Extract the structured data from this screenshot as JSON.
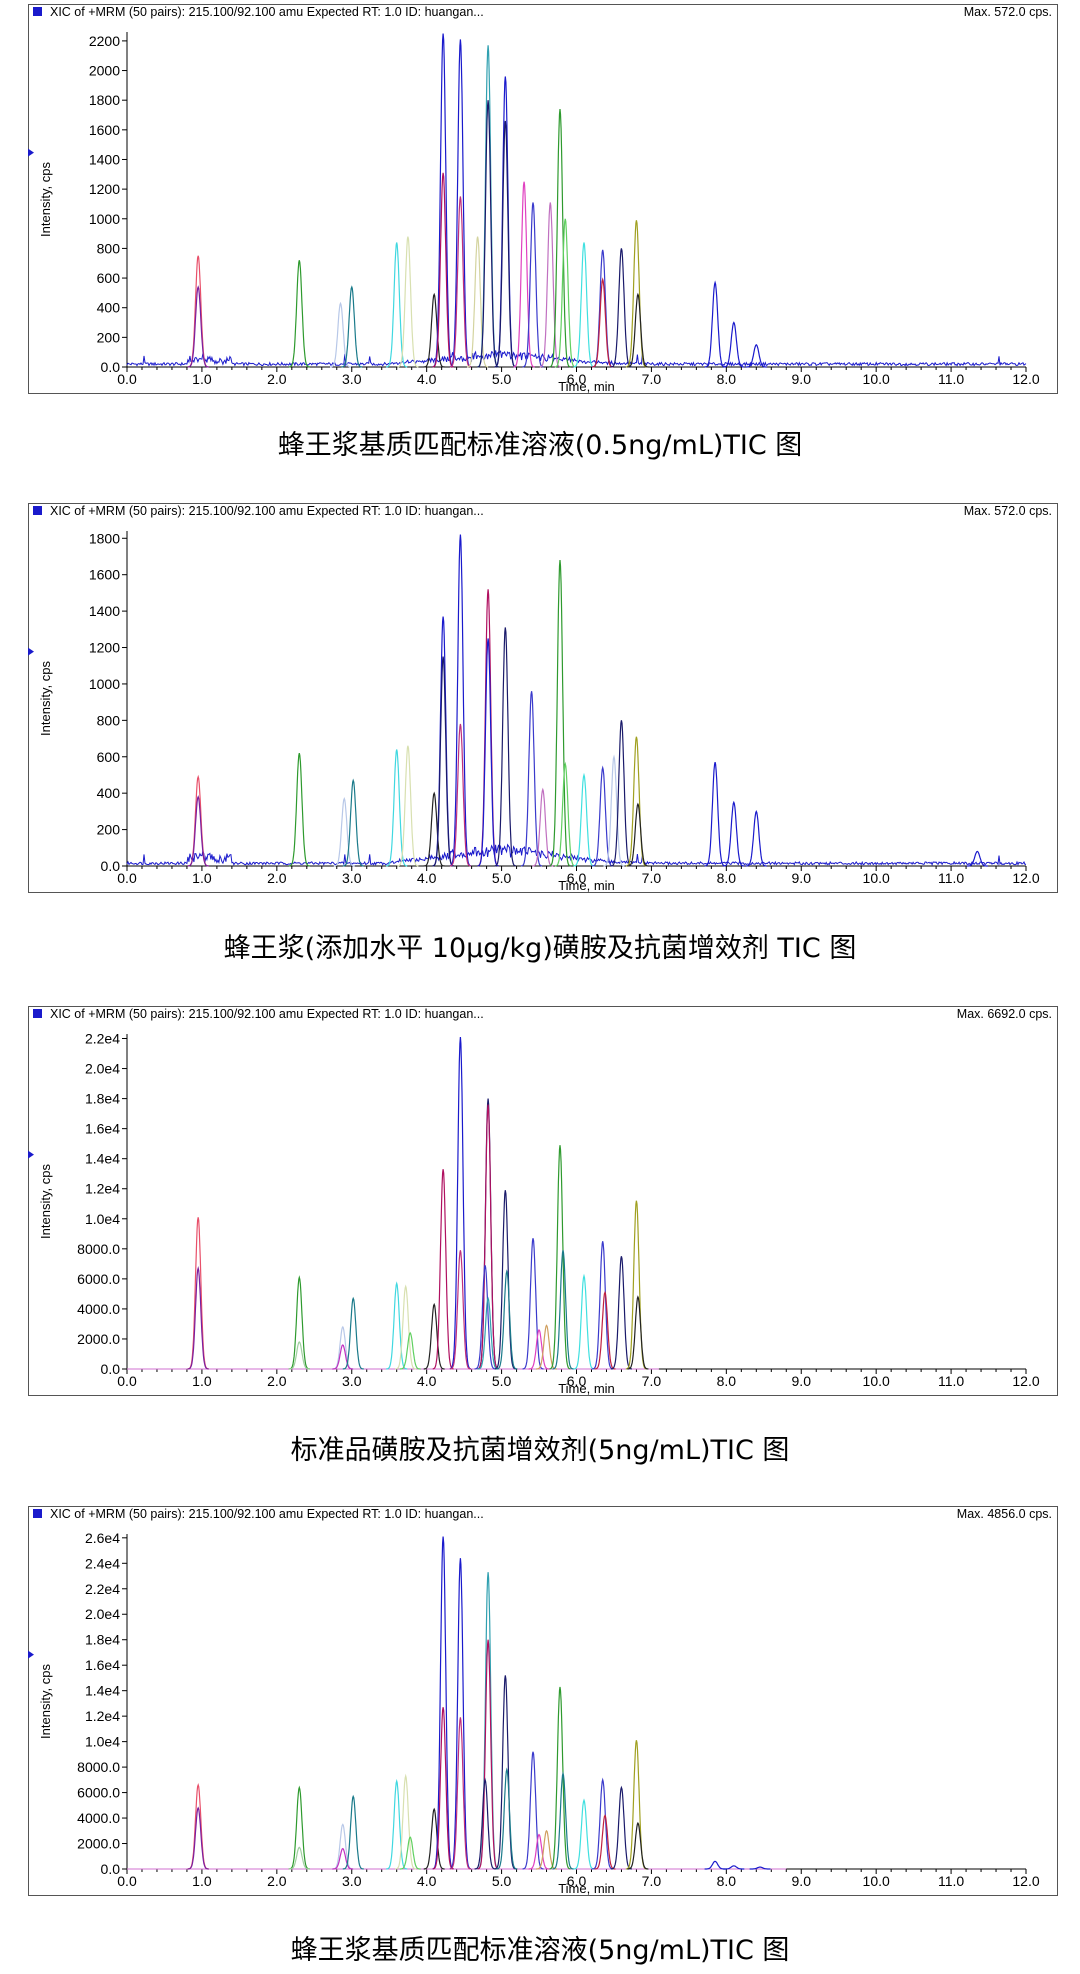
{
  "figure": {
    "captions": [
      "蜂王浆基质匹配标准溶液(0.5ng/mL)TIC 图",
      "蜂王浆(添加水平 10μg/kg)磺胺及抗菌增效剂 TIC 图",
      "标准品磺胺及抗菌增效剂(5ng/mL)TIC 图",
      "蜂王浆基质匹配标准溶液(5ng/mL)TIC 图"
    ]
  },
  "chart_data": [
    {
      "type": "line",
      "header": "XIC of +MRM (50 pairs): 215.100/92.100 amu Expected RT: 1.0 ID: huangan...",
      "max_label": "Max. 572.0 cps.",
      "title": "",
      "xlabel": "Time, min",
      "ylabel": "Intensity, cps",
      "xlim": [
        0,
        12
      ],
      "ylim": [
        0,
        2260
      ],
      "x_ticks": [
        "0.0",
        "1.0",
        "2.0",
        "3.0",
        "4.0",
        "5.0",
        "6.0",
        "7.0",
        "8.0",
        "9.0",
        "10.0",
        "11.0",
        "12.0"
      ],
      "y_ticks": [
        0,
        200,
        400,
        600,
        800,
        1000,
        1200,
        1400,
        1600,
        1800,
        2000,
        2200
      ],
      "y_tick_labels": [
        "0.0",
        "200",
        "400",
        "600",
        "800",
        "1000",
        "1200",
        "1400",
        "1600",
        "1800",
        "2000",
        "2200"
      ],
      "baseline": 20,
      "baseline_color": "#1a1acc",
      "background_end": 12,
      "hump": 60,
      "peaks": [
        {
          "rt": 0.95,
          "h": 750,
          "color": "#e8506a"
        },
        {
          "rt": 0.95,
          "h": 540,
          "color": "#7a1fa0"
        },
        {
          "rt": 2.3,
          "h": 720,
          "color": "#2e9a2e"
        },
        {
          "rt": 2.85,
          "h": 430,
          "color": "#b8c8e8"
        },
        {
          "rt": 3.0,
          "h": 540,
          "color": "#1a7a8a"
        },
        {
          "rt": 3.6,
          "h": 840,
          "color": "#40d8e0"
        },
        {
          "rt": 3.75,
          "h": 880,
          "color": "#d8e0b0"
        },
        {
          "rt": 4.1,
          "h": 490,
          "color": "#222222"
        },
        {
          "rt": 4.22,
          "h": 2250,
          "color": "#1a1acc"
        },
        {
          "rt": 4.22,
          "h": 1310,
          "color": "#b01060"
        },
        {
          "rt": 4.45,
          "h": 2210,
          "color": "#1a1acc"
        },
        {
          "rt": 4.45,
          "h": 1150,
          "color": "#c0307a"
        },
        {
          "rt": 4.68,
          "h": 880,
          "color": "#d4d4a0"
        },
        {
          "rt": 4.82,
          "h": 2170,
          "color": "#30a0b0"
        },
        {
          "rt": 4.82,
          "h": 1800,
          "color": "#1a1a6a"
        },
        {
          "rt": 5.05,
          "h": 1960,
          "color": "#1a1acc"
        },
        {
          "rt": 5.05,
          "h": 1660,
          "color": "#1a1a6a"
        },
        {
          "rt": 5.3,
          "h": 1250,
          "color": "#e040c0"
        },
        {
          "rt": 5.42,
          "h": 1110,
          "color": "#3a3acc"
        },
        {
          "rt": 5.65,
          "h": 1110,
          "color": "#c070c0"
        },
        {
          "rt": 5.78,
          "h": 1740,
          "color": "#2e9a2e"
        },
        {
          "rt": 5.85,
          "h": 1000,
          "color": "#60d060"
        },
        {
          "rt": 6.1,
          "h": 840,
          "color": "#40e0e0"
        },
        {
          "rt": 6.35,
          "h": 790,
          "color": "#3a3acc"
        },
        {
          "rt": 6.35,
          "h": 590,
          "color": "#c02040"
        },
        {
          "rt": 6.6,
          "h": 800,
          "color": "#1a1a6a"
        },
        {
          "rt": 6.8,
          "h": 990,
          "color": "#a0a020"
        },
        {
          "rt": 6.82,
          "h": 490,
          "color": "#222222"
        },
        {
          "rt": 7.85,
          "h": 570,
          "color": "#1a1acc"
        },
        {
          "rt": 8.1,
          "h": 300,
          "color": "#1a1acc"
        },
        {
          "rt": 8.4,
          "h": 150,
          "color": "#1a1acc"
        }
      ]
    },
    {
      "type": "line",
      "header": "XIC of +MRM (50 pairs): 215.100/92.100 amu Expected RT: 1.0 ID: huangan...",
      "max_label": "Max. 572.0 cps.",
      "title": "",
      "xlabel": "Time, min",
      "ylabel": "Intensity, cps",
      "xlim": [
        0,
        12
      ],
      "ylim": [
        0,
        1840
      ],
      "x_ticks": [
        "0.0",
        "1.0",
        "2.0",
        "3.0",
        "4.0",
        "5.0",
        "6.0",
        "7.0",
        "8.0",
        "9.0",
        "10.0",
        "11.0",
        "12.0"
      ],
      "y_ticks": [
        0,
        200,
        400,
        600,
        800,
        1000,
        1200,
        1400,
        1600,
        1800
      ],
      "y_tick_labels": [
        "0.0",
        "200",
        "400",
        "600",
        "800",
        "1000",
        "1200",
        "1400",
        "1600",
        "1800"
      ],
      "baseline": 15,
      "baseline_color": "#1a1acc",
      "background_end": 12,
      "hump": 70,
      "peaks": [
        {
          "rt": 0.95,
          "h": 490,
          "color": "#e8506a"
        },
        {
          "rt": 0.95,
          "h": 380,
          "color": "#7a1fa0"
        },
        {
          "rt": 2.3,
          "h": 620,
          "color": "#2e9a2e"
        },
        {
          "rt": 2.9,
          "h": 370,
          "color": "#b8c8e8"
        },
        {
          "rt": 3.02,
          "h": 470,
          "color": "#1a7a8a"
        },
        {
          "rt": 3.6,
          "h": 640,
          "color": "#40d8e0"
        },
        {
          "rt": 3.75,
          "h": 660,
          "color": "#d8e0b0"
        },
        {
          "rt": 4.1,
          "h": 400,
          "color": "#222222"
        },
        {
          "rt": 4.22,
          "h": 1370,
          "color": "#1a1acc"
        },
        {
          "rt": 4.22,
          "h": 1150,
          "color": "#1a1a6a"
        },
        {
          "rt": 4.45,
          "h": 1820,
          "color": "#1a1acc"
        },
        {
          "rt": 4.45,
          "h": 780,
          "color": "#c0307a"
        },
        {
          "rt": 4.82,
          "h": 1520,
          "color": "#b01060"
        },
        {
          "rt": 4.82,
          "h": 1250,
          "color": "#1a1acc"
        },
        {
          "rt": 5.05,
          "h": 1310,
          "color": "#1a1a6a"
        },
        {
          "rt": 5.4,
          "h": 960,
          "color": "#3a3acc"
        },
        {
          "rt": 5.55,
          "h": 420,
          "color": "#c070c0"
        },
        {
          "rt": 5.78,
          "h": 1680,
          "color": "#2e9a2e"
        },
        {
          "rt": 5.85,
          "h": 560,
          "color": "#60d060"
        },
        {
          "rt": 6.1,
          "h": 500,
          "color": "#40e0e0"
        },
        {
          "rt": 6.35,
          "h": 540,
          "color": "#3a3acc"
        },
        {
          "rt": 6.5,
          "h": 600,
          "color": "#b8c8e8"
        },
        {
          "rt": 6.6,
          "h": 800,
          "color": "#1a1a6a"
        },
        {
          "rt": 6.8,
          "h": 710,
          "color": "#a0a020"
        },
        {
          "rt": 6.82,
          "h": 340,
          "color": "#222222"
        },
        {
          "rt": 7.85,
          "h": 570,
          "color": "#1a1acc"
        },
        {
          "rt": 8.1,
          "h": 350,
          "color": "#1a1acc"
        },
        {
          "rt": 8.4,
          "h": 300,
          "color": "#1a1acc"
        },
        {
          "rt": 11.35,
          "h": 80,
          "color": "#1a1acc"
        }
      ]
    },
    {
      "type": "line",
      "header": "XIC of +MRM (50 pairs): 215.100/92.100 amu Expected RT: 1.0 ID: huangan...",
      "max_label": "Max. 6692.0 cps.",
      "title": "",
      "xlabel": "Time, min",
      "ylabel": "Intensity, cps",
      "xlim": [
        0,
        12
      ],
      "ylim": [
        0,
        22300
      ],
      "x_ticks": [
        "0.0",
        "1.0",
        "2.0",
        "3.0",
        "4.0",
        "5.0",
        "6.0",
        "7.0",
        "8.0",
        "9.0",
        "10.0",
        "11.0",
        "12.0"
      ],
      "y_ticks": [
        0,
        2000,
        4000,
        6000,
        8000,
        10000,
        12000,
        14000,
        16000,
        18000,
        20000,
        22000
      ],
      "y_tick_labels": [
        "0.0",
        "2000.0",
        "4000.0",
        "6000.0",
        "8000.0",
        "1.0e4",
        "1.2e4",
        "1.4e4",
        "1.6e4",
        "1.8e4",
        "2.0e4",
        "2.2e4"
      ],
      "baseline": 0,
      "baseline_color": "#d070d0",
      "background_end": 7.1,
      "hump": 0,
      "peaks": [
        {
          "rt": 0.95,
          "h": 10100,
          "color": "#e8506a"
        },
        {
          "rt": 0.95,
          "h": 6700,
          "color": "#7a1fa0"
        },
        {
          "rt": 2.3,
          "h": 6100,
          "color": "#2e9a2e"
        },
        {
          "rt": 2.3,
          "h": 1800,
          "color": "#a0d0a0"
        },
        {
          "rt": 2.88,
          "h": 2800,
          "color": "#b8c8e8"
        },
        {
          "rt": 2.88,
          "h": 1600,
          "color": "#c030c0"
        },
        {
          "rt": 3.02,
          "h": 4700,
          "color": "#1a7a8a"
        },
        {
          "rt": 3.6,
          "h": 5700,
          "color": "#40d8e0"
        },
        {
          "rt": 3.72,
          "h": 5500,
          "color": "#d8e0b0"
        },
        {
          "rt": 3.78,
          "h": 2400,
          "color": "#60d060"
        },
        {
          "rt": 4.1,
          "h": 4300,
          "color": "#222222"
        },
        {
          "rt": 4.22,
          "h": 13300,
          "color": "#b01060"
        },
        {
          "rt": 4.45,
          "h": 22100,
          "color": "#1a1acc"
        },
        {
          "rt": 4.45,
          "h": 7900,
          "color": "#c0307a"
        },
        {
          "rt": 4.82,
          "h": 18000,
          "color": "#1a1a6a"
        },
        {
          "rt": 4.82,
          "h": 17600,
          "color": "#b01060"
        },
        {
          "rt": 4.78,
          "h": 6900,
          "color": "#3a3acc"
        },
        {
          "rt": 4.82,
          "h": 4700,
          "color": "#30a0b0"
        },
        {
          "rt": 5.05,
          "h": 11900,
          "color": "#1a1a6a"
        },
        {
          "rt": 5.07,
          "h": 6500,
          "color": "#1a7a8a"
        },
        {
          "rt": 5.42,
          "h": 8700,
          "color": "#3a3acc"
        },
        {
          "rt": 5.5,
          "h": 2600,
          "color": "#e040c0"
        },
        {
          "rt": 5.6,
          "h": 2900,
          "color": "#d0a060"
        },
        {
          "rt": 5.78,
          "h": 14900,
          "color": "#2e9a2e"
        },
        {
          "rt": 5.82,
          "h": 7900,
          "color": "#1a7a8a"
        },
        {
          "rt": 6.1,
          "h": 6200,
          "color": "#40e0e0"
        },
        {
          "rt": 6.35,
          "h": 8500,
          "color": "#3a3acc"
        },
        {
          "rt": 6.38,
          "h": 5100,
          "color": "#c02040"
        },
        {
          "rt": 6.6,
          "h": 7500,
          "color": "#1a1a6a"
        },
        {
          "rt": 6.8,
          "h": 11200,
          "color": "#a0a020"
        },
        {
          "rt": 6.82,
          "h": 4800,
          "color": "#222222"
        }
      ]
    },
    {
      "type": "line",
      "header": "XIC of +MRM (50 pairs): 215.100/92.100 amu Expected RT: 1.0 ID: huangan...",
      "max_label": "Max. 4856.0 cps.",
      "title": "",
      "xlabel": "Time, min",
      "ylabel": "Intensity, cps",
      "xlim": [
        0,
        12
      ],
      "ylim": [
        0,
        26300
      ],
      "x_ticks": [
        "0.0",
        "1.0",
        "2.0",
        "3.0",
        "4.0",
        "5.0",
        "6.0",
        "7.0",
        "8.0",
        "9.0",
        "10.0",
        "11.0",
        "12.0"
      ],
      "y_ticks": [
        0,
        2000,
        4000,
        6000,
        8000,
        10000,
        12000,
        14000,
        16000,
        18000,
        20000,
        22000,
        24000,
        26000
      ],
      "y_tick_labels": [
        "0.0",
        "2000.0",
        "4000.0",
        "6000.0",
        "8000.0",
        "1.0e4",
        "1.2e4",
        "1.4e4",
        "1.6e4",
        "1.8e4",
        "2.0e4",
        "2.2e4",
        "2.4e4",
        "2.6e4"
      ],
      "baseline": 0,
      "baseline_color": "#d070d0",
      "background_end": 8.8,
      "hump": 0,
      "peaks": [
        {
          "rt": 0.95,
          "h": 6600,
          "color": "#e8506a"
        },
        {
          "rt": 0.95,
          "h": 4800,
          "color": "#7a1fa0"
        },
        {
          "rt": 2.3,
          "h": 6400,
          "color": "#2e9a2e"
        },
        {
          "rt": 2.3,
          "h": 1700,
          "color": "#a0d0a0"
        },
        {
          "rt": 2.88,
          "h": 3500,
          "color": "#b8c8e8"
        },
        {
          "rt": 2.88,
          "h": 1600,
          "color": "#c030c0"
        },
        {
          "rt": 3.02,
          "h": 5700,
          "color": "#1a7a8a"
        },
        {
          "rt": 3.6,
          "h": 6900,
          "color": "#40d8e0"
        },
        {
          "rt": 3.72,
          "h": 7300,
          "color": "#d8e0b0"
        },
        {
          "rt": 3.78,
          "h": 2500,
          "color": "#60d060"
        },
        {
          "rt": 4.1,
          "h": 4700,
          "color": "#222222"
        },
        {
          "rt": 4.22,
          "h": 26100,
          "color": "#1a1acc"
        },
        {
          "rt": 4.22,
          "h": 12700,
          "color": "#b01060"
        },
        {
          "rt": 4.45,
          "h": 24400,
          "color": "#1a1acc"
        },
        {
          "rt": 4.45,
          "h": 11900,
          "color": "#c0307a"
        },
        {
          "rt": 4.82,
          "h": 23300,
          "color": "#30a0b0"
        },
        {
          "rt": 4.82,
          "h": 18000,
          "color": "#b01060"
        },
        {
          "rt": 4.78,
          "h": 7000,
          "color": "#1a1a6a"
        },
        {
          "rt": 5.05,
          "h": 15200,
          "color": "#1a1a6a"
        },
        {
          "rt": 5.07,
          "h": 7800,
          "color": "#1a7a8a"
        },
        {
          "rt": 5.42,
          "h": 9200,
          "color": "#3a3acc"
        },
        {
          "rt": 5.5,
          "h": 2700,
          "color": "#e040c0"
        },
        {
          "rt": 5.6,
          "h": 3000,
          "color": "#d0a060"
        },
        {
          "rt": 5.78,
          "h": 14300,
          "color": "#2e9a2e"
        },
        {
          "rt": 5.82,
          "h": 7500,
          "color": "#1a7a8a"
        },
        {
          "rt": 6.1,
          "h": 5400,
          "color": "#40e0e0"
        },
        {
          "rt": 6.35,
          "h": 7000,
          "color": "#3a3acc"
        },
        {
          "rt": 6.38,
          "h": 4200,
          "color": "#c02040"
        },
        {
          "rt": 6.6,
          "h": 6400,
          "color": "#1a1a6a"
        },
        {
          "rt": 6.8,
          "h": 10100,
          "color": "#a0a020"
        },
        {
          "rt": 6.82,
          "h": 3600,
          "color": "#222222"
        },
        {
          "rt": 7.85,
          "h": 600,
          "color": "#1a1acc"
        },
        {
          "rt": 8.1,
          "h": 250,
          "color": "#1a1acc"
        },
        {
          "rt": 8.45,
          "h": 150,
          "color": "#1a1acc"
        }
      ]
    }
  ]
}
